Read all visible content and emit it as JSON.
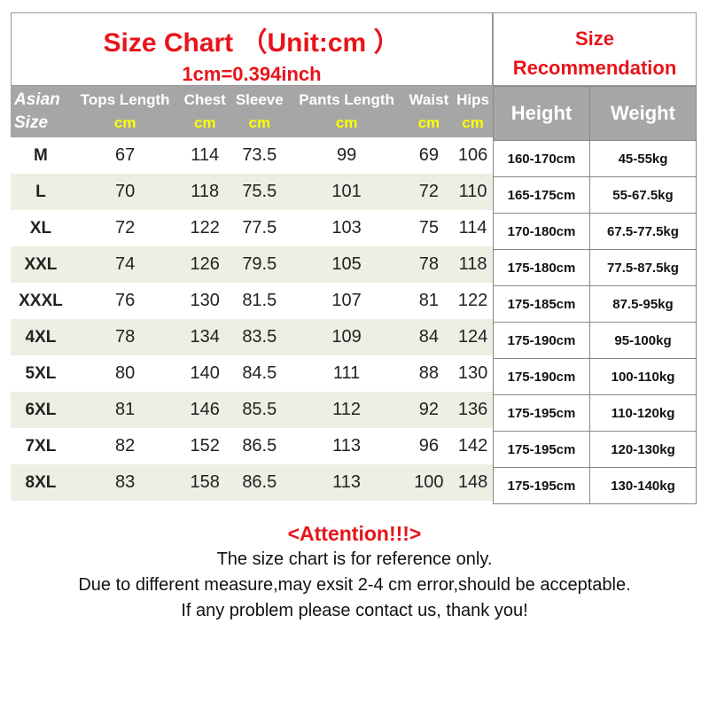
{
  "title": "Size Chart （Unit:cm ）",
  "subtitle": "1cm=0.394inch",
  "recommendation_title": [
    "Size",
    "Recommendation"
  ],
  "headers": {
    "size": [
      "Asian",
      "Size"
    ],
    "columns": [
      "Tops Length",
      "Chest",
      "Sleeve",
      "Pants Length",
      "Waist",
      "Hips"
    ],
    "unit": "cm",
    "height": "Height",
    "weight": "Weight"
  },
  "rows": [
    [
      "M",
      "67",
      "114",
      "73.5",
      "99",
      "69",
      "106",
      "160-170cm",
      "45-55kg"
    ],
    [
      "L",
      "70",
      "118",
      "75.5",
      "101",
      "72",
      "110",
      "165-175cm",
      "55-67.5kg"
    ],
    [
      "XL",
      "72",
      "122",
      "77.5",
      "103",
      "75",
      "114",
      "170-180cm",
      "67.5-77.5kg"
    ],
    [
      "XXL",
      "74",
      "126",
      "79.5",
      "105",
      "78",
      "118",
      "175-180cm",
      "77.5-87.5kg"
    ],
    [
      "XXXL",
      "76",
      "130",
      "81.5",
      "107",
      "81",
      "122",
      "175-185cm",
      "87.5-95kg"
    ],
    [
      "4XL",
      "78",
      "134",
      "83.5",
      "109",
      "84",
      "124",
      "175-190cm",
      "95-100kg"
    ],
    [
      "5XL",
      "80",
      "140",
      "84.5",
      "111",
      "88",
      "130",
      "175-190cm",
      "100-110kg"
    ],
    [
      "6XL",
      "81",
      "146",
      "85.5",
      "112",
      "92",
      "136",
      "175-195cm",
      "110-120kg"
    ],
    [
      "7XL",
      "82",
      "152",
      "86.5",
      "113",
      "96",
      "142",
      "175-195cm",
      "120-130kg"
    ],
    [
      "8XL",
      "83",
      "158",
      "86.5",
      "113",
      "100",
      "148",
      "175-195cm",
      "130-140kg"
    ]
  ],
  "notes": {
    "attention": "<Attention!!!>",
    "lines": [
      "The size chart is for reference only.",
      "Due to different measure,may exsit 2-4 cm error,should be acceptable.",
      "If any problem please contact us, thank you!"
    ]
  },
  "colors": {
    "accent": "#e8141a",
    "header": "#a6a6a6",
    "alt_row": "#eeeee4",
    "unit": "#ffff00"
  }
}
